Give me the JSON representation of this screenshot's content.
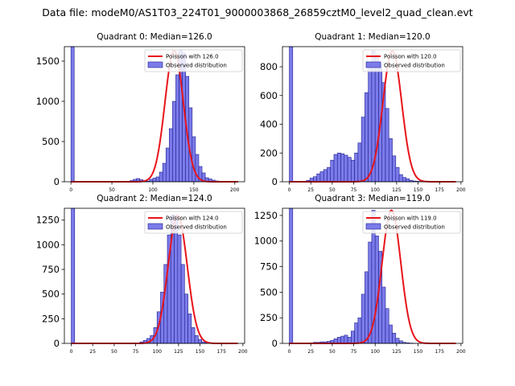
{
  "figure_title": "Data file: modeM0/AS1T03_224T01_9000003868_26859cztM0_level2_quad_clean.evt",
  "colors": {
    "hist_fill": "#7b7bea",
    "hist_edge": "#1f1f8f",
    "curve": "#e8141a",
    "background": "#ffffff"
  },
  "chart_data": [
    {
      "type": "bar",
      "title": "Quadrant 0: Median=126.0",
      "xlim": [
        -8,
        212
      ],
      "ylim": [
        0,
        1680
      ],
      "xticks": [
        0,
        50,
        100,
        150,
        200
      ],
      "xtick_labels": [
        "0",
        "50",
        "100",
        "150",
        "200"
      ],
      "yticks": [
        0,
        500,
        1000,
        1500
      ],
      "ytick_labels": [
        "0",
        "500",
        "1000",
        "1500"
      ],
      "bin_width": 4,
      "spike_bin_start": 0,
      "legend": [
        "Poisson with 126.0",
        "Observed distribution"
      ],
      "legend_position": "top-right",
      "poisson_mean": 126.0,
      "counts": [
        1680,
        0,
        0,
        0,
        0,
        0,
        0,
        0,
        0,
        0,
        0,
        0,
        0,
        0,
        0,
        0,
        2,
        6,
        14,
        30,
        40,
        25,
        15,
        8,
        30,
        45,
        60,
        120,
        230,
        420,
        660,
        1000,
        1330,
        1630,
        1600,
        1310,
        920,
        560,
        340,
        190,
        110,
        50,
        35,
        20,
        10,
        5,
        3,
        2,
        1,
        0,
        0,
        0
      ]
    },
    {
      "type": "bar",
      "title": "Quadrant 1: Median=120.0",
      "xlim": [
        -8,
        202
      ],
      "ylim": [
        0,
        940
      ],
      "xticks": [
        0,
        25,
        50,
        75,
        100,
        125,
        150,
        175,
        200
      ],
      "xtick_labels": [
        "0",
        "25",
        "50",
        "75",
        "100",
        "125",
        "150",
        "175",
        "200"
      ],
      "yticks": [
        0,
        200,
        400,
        600,
        800
      ],
      "ytick_labels": [
        "0",
        "200",
        "400",
        "600",
        "800"
      ],
      "bin_width": 4,
      "spike_bin_start": 0,
      "legend": [
        "Poisson with 120.0",
        "Observed distribution"
      ],
      "legend_position": "top-right",
      "poisson_mean": 120.0,
      "counts": [
        940,
        0,
        0,
        0,
        0,
        10,
        25,
        35,
        55,
        70,
        85,
        100,
        150,
        190,
        200,
        195,
        185,
        170,
        150,
        200,
        270,
        450,
        620,
        800,
        910,
        880,
        820,
        690,
        510,
        300,
        180,
        100,
        50,
        30,
        20,
        10,
        5,
        3,
        1,
        0
      ]
    },
    {
      "type": "bar",
      "title": "Quadrant 2: Median=124.0",
      "xlim": [
        -8,
        202
      ],
      "ylim": [
        0,
        1370
      ],
      "xticks": [
        0,
        25,
        50,
        75,
        100,
        125,
        150,
        175,
        200
      ],
      "xtick_labels": [
        "0",
        "25",
        "50",
        "75",
        "100",
        "125",
        "150",
        "175",
        "200"
      ],
      "yticks": [
        0,
        250,
        500,
        750,
        1000,
        1250
      ],
      "ytick_labels": [
        "0",
        "250",
        "500",
        "750",
        "1000",
        "1250"
      ],
      "bin_width": 4,
      "spike_bin_start": 0,
      "legend": [
        "Poisson with 124.0",
        "Observed distribution"
      ],
      "legend_position": "top-right",
      "poisson_mean": 124.0,
      "counts": [
        1370,
        0,
        0,
        0,
        0,
        0,
        0,
        0,
        0,
        0,
        0,
        0,
        0,
        0,
        0,
        0,
        0,
        0,
        0,
        0,
        15,
        30,
        50,
        80,
        160,
        320,
        520,
        800,
        1100,
        1300,
        1300,
        1100,
        800,
        500,
        300,
        160,
        80,
        40,
        15,
        5,
        0
      ]
    },
    {
      "type": "bar",
      "title": "Quadrant 3: Median=119.0",
      "xlim": [
        -8,
        202
      ],
      "ylim": [
        0,
        1320
      ],
      "xticks": [
        0,
        25,
        50,
        75,
        100,
        125,
        150,
        175,
        200
      ],
      "xtick_labels": [
        "0",
        "25",
        "50",
        "75",
        "100",
        "125",
        "150",
        "175",
        "200"
      ],
      "yticks": [
        0,
        250,
        500,
        750,
        1000,
        1250
      ],
      "ytick_labels": [
        "0",
        "250",
        "500",
        "750",
        "1000",
        "1250"
      ],
      "bin_width": 4,
      "spike_bin_start": 0,
      "legend": [
        "Poisson with 119.0",
        "Observed distribution"
      ],
      "legend_position": "top-right",
      "poisson_mean": 119.0,
      "counts": [
        1320,
        0,
        0,
        0,
        0,
        5,
        5,
        10,
        10,
        15,
        15,
        20,
        30,
        45,
        60,
        70,
        80,
        60,
        120,
        200,
        250,
        480,
        700,
        990,
        1300,
        1050,
        900,
        550,
        340,
        180,
        100,
        50,
        25,
        10,
        5,
        3,
        1,
        0,
        0,
        0
      ]
    }
  ]
}
